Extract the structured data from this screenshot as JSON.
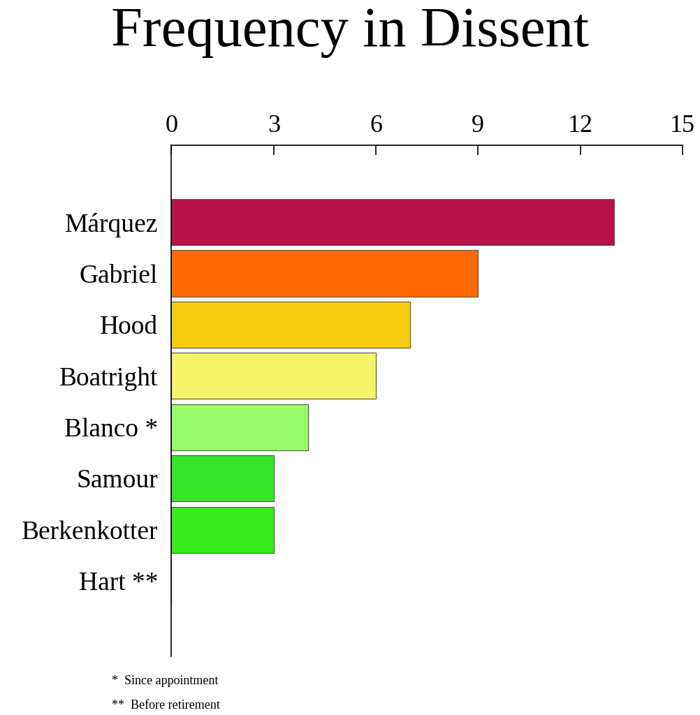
{
  "chart_data": {
    "type": "bar",
    "orientation": "horizontal",
    "title": "Frequency in Dissent",
    "categories": [
      "Márquez",
      "Gabriel",
      "Hood",
      "Boatright",
      "Blanco *",
      "Samour",
      "Berkenkotter",
      "Hart **"
    ],
    "values": [
      13,
      9,
      7,
      6,
      4,
      3,
      3,
      0
    ],
    "colors": [
      "#b5124a",
      "#ff6a00",
      "#f5cd10",
      "#f4f36a",
      "#98fc6a",
      "#36e62a",
      "#37ec1c",
      "#37ec1c"
    ],
    "xlim": [
      0,
      15
    ],
    "xticks": [
      0,
      3,
      6,
      9,
      12,
      15
    ],
    "grid": false,
    "notes": [
      "*  Since appointment",
      "**  Before retirement"
    ]
  }
}
